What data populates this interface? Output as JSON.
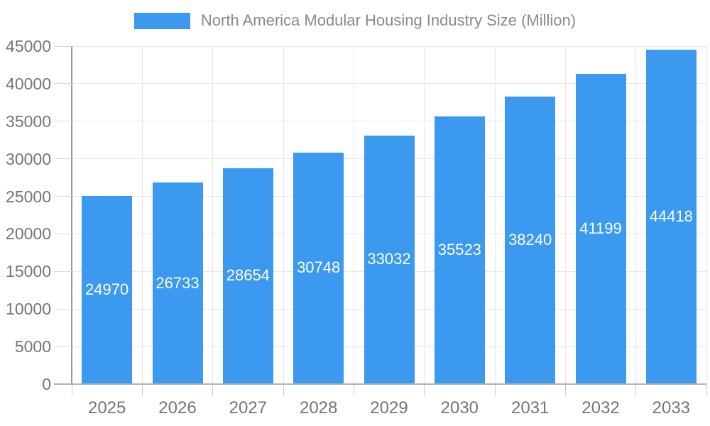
{
  "legend": {
    "label": "North America Modular Housing Industry Size (Million)"
  },
  "colors": {
    "bar": "#3B99F0",
    "gridline": "#e6e6e6",
    "y_axis_line": "#999999",
    "x_axis_line": "#b3b3b3",
    "tick": "#c9c9c9",
    "axis_label_text": "#757575",
    "legend_text": "#8a8a8a",
    "bar_value_text": "#ffffff",
    "background": "#ffffff"
  },
  "chart_data": {
    "type": "bar",
    "title": "North America Modular Housing Industry Size (Million)",
    "categories": [
      "2025",
      "2026",
      "2027",
      "2028",
      "2029",
      "2030",
      "2031",
      "2032",
      "2033"
    ],
    "values": [
      24970,
      26733,
      28654,
      30748,
      33032,
      35523,
      38240,
      41199,
      44418
    ],
    "xlabel": "",
    "ylabel": "",
    "ylim": [
      0,
      45000
    ],
    "ytick_interval": 5000,
    "ytick_labels": [
      "0",
      "5000",
      "10000",
      "15000",
      "20000",
      "25000",
      "30000",
      "35000",
      "40000",
      "45000"
    ],
    "grid": true,
    "legend_position": "top-center",
    "bar_value_labels": "white, centered vertically inside each bar"
  }
}
